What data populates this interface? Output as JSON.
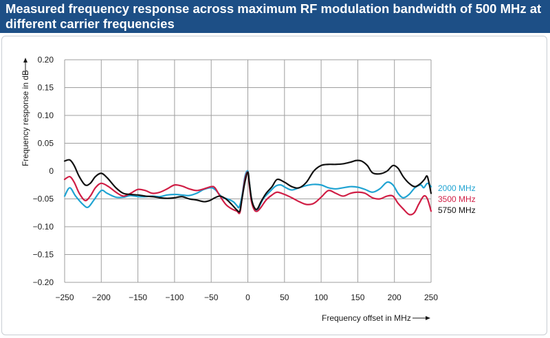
{
  "header": {
    "title": "Measured frequency response across maximum RF modulation bandwidth of 500 MHz at different carrier frequencies"
  },
  "colors": {
    "header_bg": "#1d4f86",
    "grid": "#9e9e9e"
  },
  "chart_data": {
    "type": "line",
    "title": "Measured frequency response across maximum RF modulation bandwidth of 500 MHz at different carrier frequencies",
    "xlabel": "Frequency offset in MHz",
    "ylabel": "Frequency response in dB",
    "xlim": [
      -250,
      250
    ],
    "ylim": [
      -0.2,
      0.2
    ],
    "x_ticks": [
      -250,
      -200,
      -150,
      -100,
      -50,
      0,
      50,
      100,
      150,
      200,
      250
    ],
    "x_tick_labels": [
      "−250",
      "−200",
      "−150",
      "−100",
      "−50",
      "0",
      "50",
      "100",
      "150",
      "200",
      "250"
    ],
    "y_ticks": [
      0.2,
      0.15,
      0.1,
      0.05,
      0,
      -0.05,
      -0.1,
      -0.15,
      -0.2
    ],
    "y_tick_labels": [
      "0.20",
      "0.15",
      "0.10",
      "0.05",
      "0",
      "−0.05",
      "−0.10",
      "−0.15",
      "−0.20"
    ],
    "grid": true,
    "legend_position": "right",
    "series": [
      {
        "name": "2000 MHz",
        "color": "#1fa3d2",
        "x": [
          -250,
          -243,
          -235,
          -225,
          -218,
          -210,
          -200,
          -192,
          -180,
          -170,
          -160,
          -150,
          -140,
          -130,
          -120,
          -110,
          -100,
          -90,
          -80,
          -70,
          -60,
          -50,
          -45,
          -40,
          -35,
          -28,
          -20,
          -15,
          -12,
          -8,
          -4,
          0,
          2,
          5,
          9,
          13,
          17,
          22,
          30,
          38,
          45,
          52,
          60,
          70,
          80,
          90,
          100,
          110,
          120,
          130,
          140,
          150,
          160,
          170,
          180,
          190,
          198,
          205,
          212,
          220,
          228,
          236,
          240,
          245,
          250
        ],
        "y": [
          -0.045,
          -0.03,
          -0.045,
          -0.06,
          -0.065,
          -0.052,
          -0.035,
          -0.04,
          -0.047,
          -0.047,
          -0.044,
          -0.046,
          -0.046,
          -0.045,
          -0.046,
          -0.043,
          -0.042,
          -0.043,
          -0.044,
          -0.04,
          -0.033,
          -0.03,
          -0.033,
          -0.04,
          -0.047,
          -0.05,
          -0.055,
          -0.062,
          -0.065,
          -0.045,
          -0.01,
          0.0,
          -0.02,
          -0.05,
          -0.068,
          -0.07,
          -0.06,
          -0.048,
          -0.037,
          -0.027,
          -0.025,
          -0.03,
          -0.034,
          -0.03,
          -0.026,
          -0.024,
          -0.025,
          -0.03,
          -0.032,
          -0.03,
          -0.028,
          -0.029,
          -0.033,
          -0.038,
          -0.032,
          -0.02,
          -0.025,
          -0.04,
          -0.048,
          -0.042,
          -0.03,
          -0.025,
          -0.03,
          -0.022,
          -0.028
        ]
      },
      {
        "name": "3500 MHz",
        "color": "#d01e45",
        "x": [
          -250,
          -243,
          -237,
          -230,
          -222,
          -215,
          -208,
          -200,
          -190,
          -180,
          -170,
          -160,
          -150,
          -140,
          -130,
          -120,
          -110,
          -100,
          -90,
          -80,
          -70,
          -60,
          -50,
          -45,
          -38,
          -30,
          -22,
          -15,
          -11,
          -8,
          -4,
          0,
          2,
          5,
          9,
          13,
          18,
          25,
          33,
          40,
          50,
          60,
          70,
          80,
          90,
          100,
          110,
          120,
          130,
          140,
          150,
          160,
          170,
          180,
          190,
          198,
          205,
          212,
          220,
          227,
          233,
          240,
          245,
          250
        ],
        "y": [
          -0.015,
          -0.01,
          -0.02,
          -0.04,
          -0.053,
          -0.045,
          -0.03,
          -0.022,
          -0.028,
          -0.038,
          -0.045,
          -0.04,
          -0.033,
          -0.035,
          -0.04,
          -0.038,
          -0.032,
          -0.025,
          -0.027,
          -0.032,
          -0.035,
          -0.032,
          -0.028,
          -0.03,
          -0.045,
          -0.06,
          -0.068,
          -0.072,
          -0.075,
          -0.05,
          -0.015,
          -0.002,
          -0.025,
          -0.055,
          -0.07,
          -0.072,
          -0.065,
          -0.052,
          -0.043,
          -0.038,
          -0.042,
          -0.048,
          -0.055,
          -0.06,
          -0.058,
          -0.047,
          -0.035,
          -0.04,
          -0.045,
          -0.04,
          -0.038,
          -0.04,
          -0.048,
          -0.05,
          -0.045,
          -0.045,
          -0.058,
          -0.068,
          -0.078,
          -0.075,
          -0.06,
          -0.045,
          -0.05,
          -0.072
        ]
      },
      {
        "name": "5750 MHz",
        "color": "#111111",
        "x": [
          -250,
          -243,
          -237,
          -230,
          -222,
          -215,
          -208,
          -200,
          -192,
          -180,
          -170,
          -160,
          -150,
          -140,
          -130,
          -120,
          -110,
          -100,
          -90,
          -80,
          -70,
          -60,
          -52,
          -45,
          -38,
          -30,
          -22,
          -15,
          -11,
          -8,
          -4,
          0,
          2,
          5,
          9,
          13,
          18,
          25,
          33,
          40,
          50,
          60,
          70,
          80,
          90,
          100,
          110,
          120,
          130,
          140,
          148,
          155,
          163,
          170,
          180,
          190,
          198,
          205,
          212,
          220,
          228,
          236,
          241,
          245,
          250
        ],
        "y": [
          0.018,
          0.02,
          0.01,
          -0.01,
          -0.025,
          -0.022,
          -0.01,
          -0.004,
          -0.012,
          -0.03,
          -0.04,
          -0.042,
          -0.043,
          -0.045,
          -0.046,
          -0.048,
          -0.049,
          -0.048,
          -0.046,
          -0.05,
          -0.052,
          -0.055,
          -0.053,
          -0.048,
          -0.045,
          -0.05,
          -0.06,
          -0.07,
          -0.072,
          -0.05,
          -0.02,
          -0.002,
          -0.02,
          -0.05,
          -0.066,
          -0.068,
          -0.055,
          -0.04,
          -0.028,
          -0.015,
          -0.02,
          -0.028,
          -0.03,
          -0.02,
          0.0,
          0.01,
          0.012,
          0.012,
          0.013,
          0.016,
          0.019,
          0.018,
          0.01,
          -0.003,
          -0.005,
          0.0,
          0.01,
          0.005,
          -0.01,
          -0.022,
          -0.028,
          -0.022,
          -0.015,
          -0.01,
          -0.04
        ]
      }
    ]
  }
}
